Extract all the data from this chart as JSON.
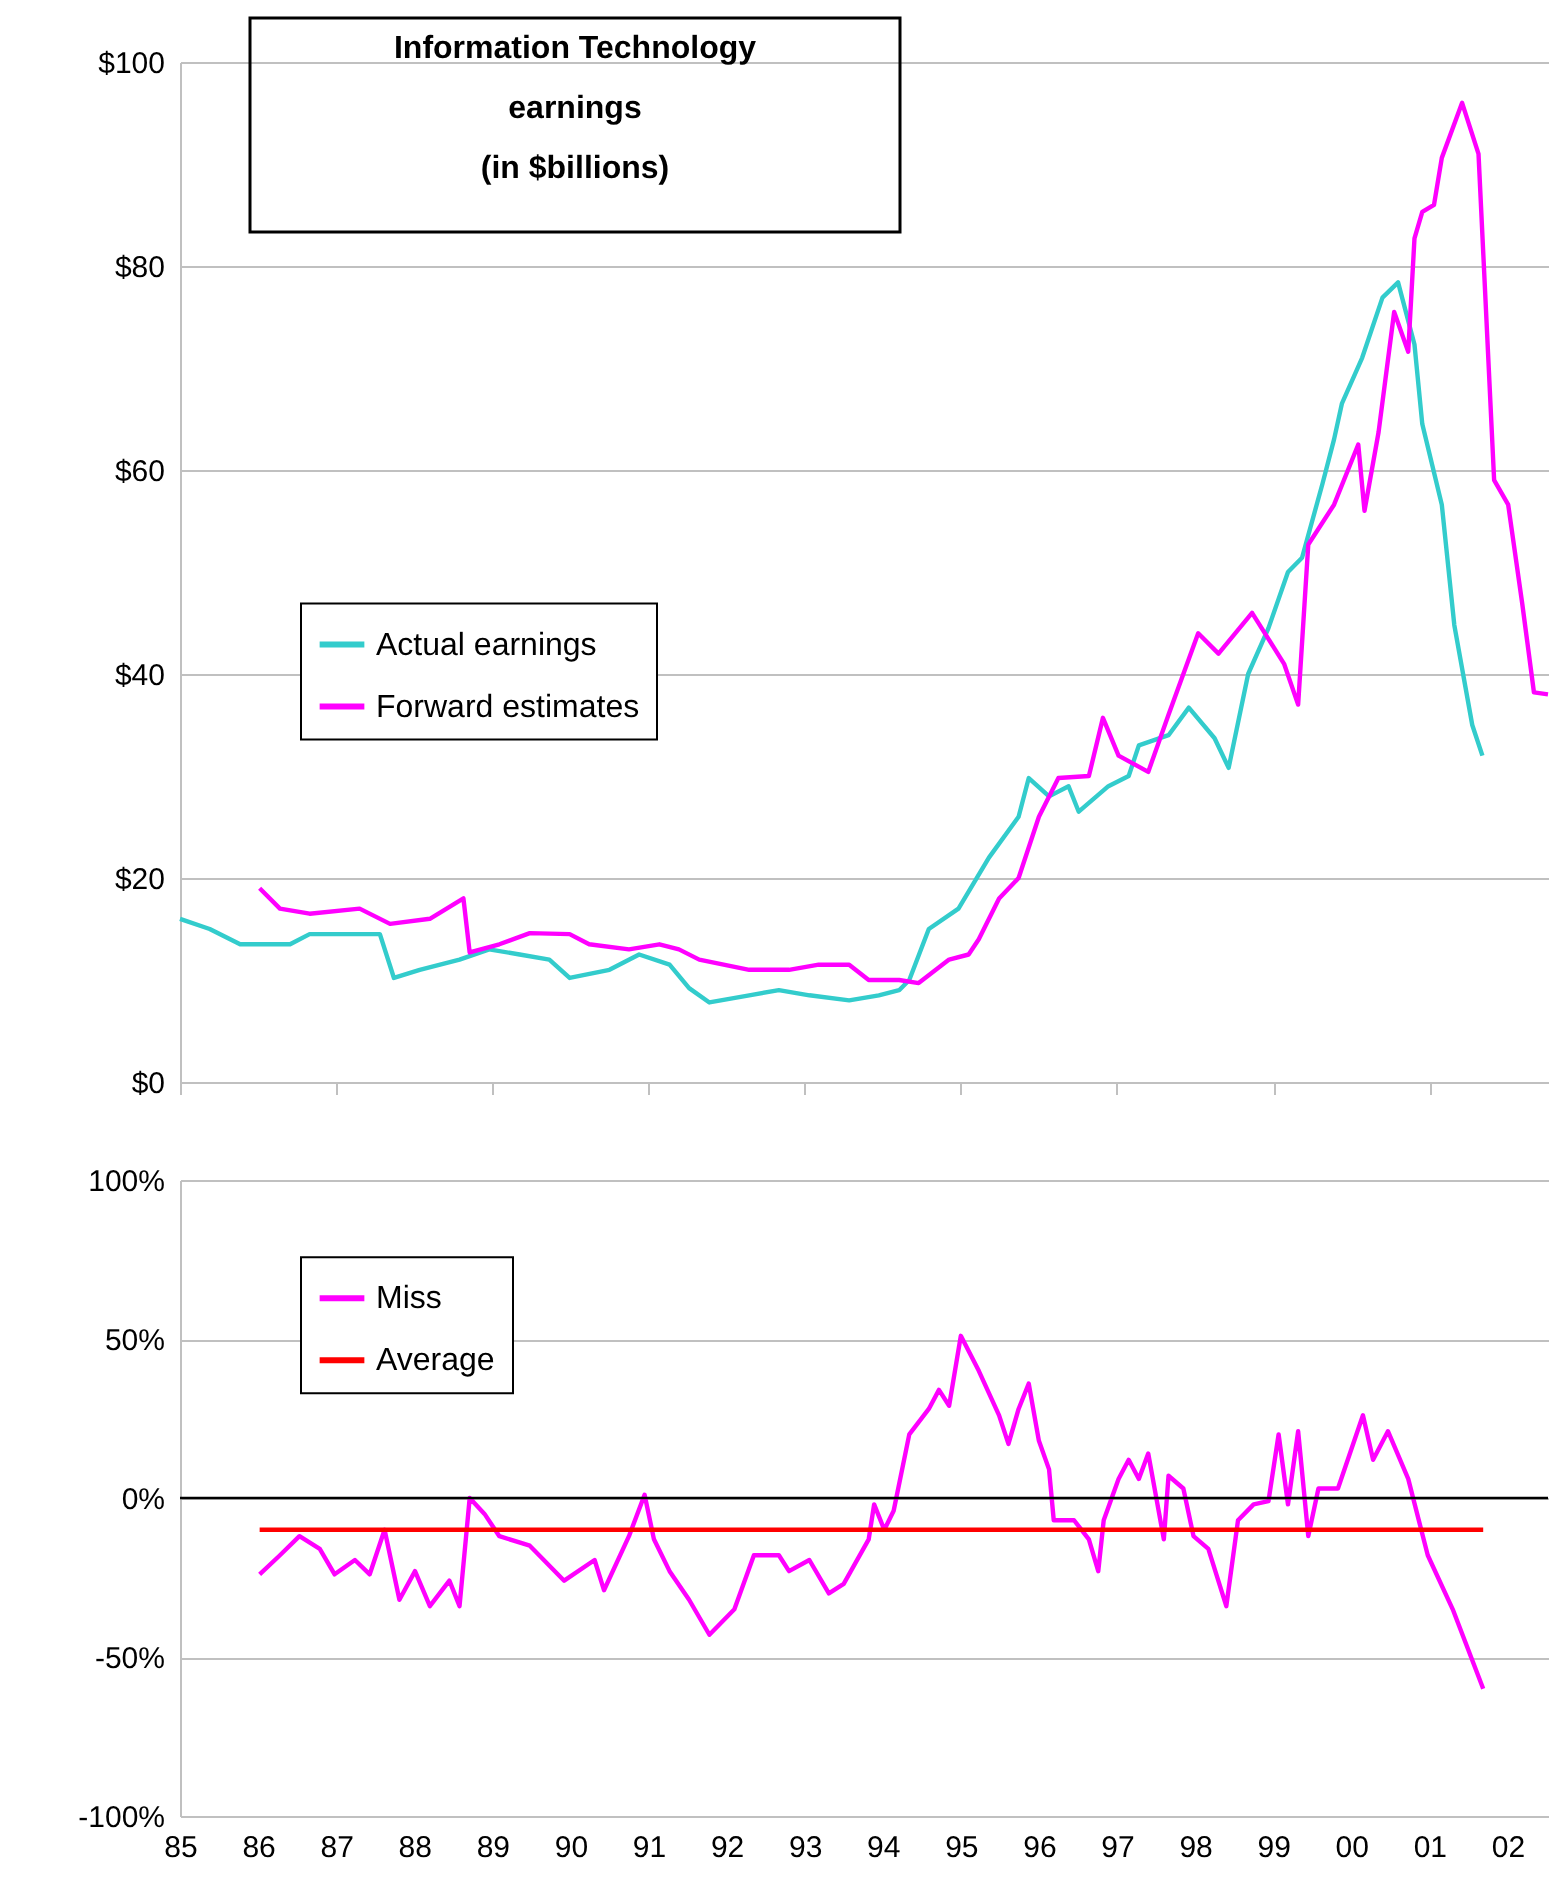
{
  "chart_data": [
    {
      "type": "line",
      "title": "Information Technology\nearnings\n(in $billions)",
      "xlim": [
        1985,
        2002.52
      ],
      "xticks": [
        {
          "value": 1985,
          "label": null
        },
        {
          "value": 1987,
          "label": null
        },
        {
          "value": 1989,
          "label": null
        },
        {
          "value": 1991,
          "label": null
        },
        {
          "value": 1993,
          "label": null
        },
        {
          "value": 1995,
          "label": null
        },
        {
          "value": 1997,
          "label": null
        },
        {
          "value": 1999,
          "label": null
        },
        {
          "value": 2001,
          "label": null
        }
      ],
      "ylim": [
        0,
        100
      ],
      "yticks": [
        {
          "value": 0,
          "label": "$0"
        },
        {
          "value": 20,
          "label": "$20"
        },
        {
          "value": 40,
          "label": "$40"
        },
        {
          "value": 60,
          "label": "$60"
        },
        {
          "value": 80,
          "label": "$80"
        },
        {
          "value": 100,
          "label": "$100"
        }
      ],
      "tick_labels": "y",
      "grid": "y",
      "legend": "left",
      "series": [
        {
          "name": "Actual earnings",
          "color": "#33cccc",
          "x": [
            1985.0,
            1985.38,
            1985.77,
            1986.41,
            1986.66,
            1987.56,
            1987.74,
            1988.07,
            1988.58,
            1988.96,
            1989.35,
            1989.73,
            1989.99,
            1990.5,
            1990.88,
            1991.27,
            1991.52,
            1991.78,
            1992.29,
            1992.67,
            1993.06,
            1993.57,
            1993.95,
            1994.21,
            1994.34,
            1994.59,
            1994.97,
            1995.36,
            1995.74,
            1995.87,
            1996.13,
            1996.38,
            1996.51,
            1996.89,
            1997.15,
            1997.28,
            1997.66,
            1997.92,
            1998.25,
            1998.43,
            1998.68,
            1998.94,
            1999.19,
            1999.37,
            1999.63,
            1999.78,
            1999.88,
            2000.14,
            2000.4,
            2000.6,
            2000.81,
            2000.91,
            2001.16,
            2001.32,
            2001.55,
            2001.68
          ],
          "values": [
            16,
            15,
            13.5,
            13.5,
            14.5,
            14.5,
            10.2,
            11,
            12,
            13,
            12.5,
            12,
            10.2,
            11,
            12.5,
            11.5,
            9.2,
            7.8,
            8.5,
            9,
            8.5,
            8,
            8.5,
            9,
            10,
            15,
            17,
            22,
            26,
            29.8,
            28,
            29,
            26.5,
            29,
            30,
            33,
            34,
            36.7,
            33.7,
            30.8,
            40,
            44.5,
            50,
            51.4,
            58.6,
            63,
            66.5,
            71,
            76.9,
            78.4,
            72.3,
            64.5,
            56.6,
            44.8,
            35,
            32
          ]
        },
        {
          "name": "Forward estimates",
          "color": "#ff00ff",
          "x": [
            1986.02,
            1986.28,
            1986.66,
            1987.3,
            1987.69,
            1988.2,
            1988.63,
            1988.71,
            1989.09,
            1989.48,
            1989.99,
            1990.24,
            1990.75,
            1991.14,
            1991.39,
            1991.65,
            1992.29,
            1992.8,
            1993.18,
            1993.57,
            1993.82,
            1994.21,
            1994.46,
            1994.85,
            1995.1,
            1995.23,
            1995.49,
            1995.74,
            1996.0,
            1996.25,
            1996.64,
            1996.82,
            1997.02,
            1997.4,
            1997.66,
            1998.04,
            1998.3,
            1998.73,
            1999.14,
            1999.32,
            1999.45,
            1999.78,
            2000.09,
            2000.17,
            2000.35,
            2000.55,
            2000.73,
            2000.81,
            2000.91,
            2001.06,
            2001.16,
            2001.42,
            2001.63,
            2001.83,
            2002.01,
            2002.19,
            2002.34,
            2002.52
          ],
          "values": [
            19,
            17,
            16.5,
            17,
            15.5,
            16,
            18,
            12.7,
            13.5,
            14.6,
            14.5,
            13.5,
            13,
            13.5,
            13,
            12,
            11,
            11,
            11.5,
            11.5,
            10,
            10,
            9.7,
            12,
            12.5,
            14,
            18,
            20,
            26,
            29.8,
            30,
            35.7,
            32,
            30.4,
            36,
            44,
            42,
            46,
            41,
            37,
            52.7,
            56.6,
            62.5,
            56,
            63.7,
            75.5,
            71.6,
            82.7,
            85.3,
            86,
            90.6,
            96,
            91,
            59,
            56.6,
            46.9,
            38.2,
            38
          ]
        }
      ]
    },
    {
      "type": "line",
      "xlim": [
        1985,
        2002.52
      ],
      "xticks": [
        {
          "value": 1985,
          "label": "85"
        },
        {
          "value": 1986,
          "label": "86"
        },
        {
          "value": 1987,
          "label": "87"
        },
        {
          "value": 1988,
          "label": "88"
        },
        {
          "value": 1989,
          "label": "89"
        },
        {
          "value": 1990,
          "label": "90"
        },
        {
          "value": 1991,
          "label": "91"
        },
        {
          "value": 1992,
          "label": "92"
        },
        {
          "value": 1993,
          "label": "93"
        },
        {
          "value": 1994,
          "label": "94"
        },
        {
          "value": 1995,
          "label": "95"
        },
        {
          "value": 1996,
          "label": "96"
        },
        {
          "value": 1997,
          "label": "97"
        },
        {
          "value": 1998,
          "label": "98"
        },
        {
          "value": 1999,
          "label": "99"
        },
        {
          "value": 2000,
          "label": "00"
        },
        {
          "value": 2001,
          "label": "01"
        },
        {
          "value": 2002,
          "label": "02"
        }
      ],
      "ylim": [
        -100,
        100
      ],
      "yticks": [
        {
          "value": -100,
          "label": "-100%"
        },
        {
          "value": -50,
          "label": "-50%"
        },
        {
          "value": 0,
          "label": "0%"
        },
        {
          "value": 50,
          "label": "50%"
        },
        {
          "value": 100,
          "label": "100%"
        }
      ],
      "grid": "y",
      "legend": "top left",
      "ref_lines": [
        {
          "axis": "y",
          "value": 0,
          "color": "#000000"
        }
      ],
      "series": [
        {
          "name": "Miss",
          "color": "#ff00ff",
          "x": [
            1986.02,
            1986.28,
            1986.53,
            1986.79,
            1986.98,
            1987.24,
            1987.43,
            1987.62,
            1987.81,
            1988.01,
            1988.2,
            1988.45,
            1988.58,
            1988.71,
            1988.9,
            1989.09,
            1989.48,
            1989.92,
            1990.31,
            1990.43,
            1990.75,
            1990.95,
            1991.07,
            1991.27,
            1991.52,
            1991.78,
            1992.1,
            1992.35,
            1992.67,
            1992.8,
            1993.06,
            1993.31,
            1993.5,
            1993.82,
            1993.89,
            1994.02,
            1994.14,
            1994.34,
            1994.59,
            1994.72,
            1994.85,
            1995.0,
            1995.23,
            1995.49,
            1995.61,
            1995.74,
            1995.87,
            1996.0,
            1996.13,
            1996.19,
            1996.45,
            1996.64,
            1996.76,
            1996.83,
            1997.02,
            1997.15,
            1997.28,
            1997.4,
            1997.6,
            1997.66,
            1997.85,
            1997.98,
            1998.17,
            1998.4,
            1998.55,
            1998.75,
            1998.94,
            1999.07,
            1999.19,
            1999.32,
            1999.45,
            1999.58,
            1999.83,
            2000.15,
            2000.28,
            2000.47,
            2000.73,
            2000.98,
            2001.3,
            2001.69
          ],
          "values": [
            -24,
            -18,
            -12,
            -16,
            -24,
            -19.5,
            -24,
            -10,
            -32,
            -23,
            -34,
            -26,
            -34,
            0,
            -5,
            -12,
            -15,
            -26,
            -19.5,
            -29,
            -12,
            1,
            -13,
            -23,
            -32,
            -43,
            -35,
            -18,
            -18,
            -23,
            -19.5,
            -30,
            -27,
            -13,
            -2,
            -10,
            -4,
            20,
            28,
            34,
            29,
            51,
            40,
            26,
            17,
            28,
            36,
            18,
            9,
            -7,
            -7,
            -13,
            -23,
            -7,
            6,
            12,
            6,
            14,
            -13,
            7,
            3,
            -12,
            -16,
            -34,
            -7,
            -2,
            -1,
            20,
            -2,
            21,
            -12,
            3,
            3,
            26,
            12,
            21,
            6,
            -18,
            -35,
            -60
          ]
        },
        {
          "name": "Average",
          "color": "#ff0000",
          "x": [
            1986.02,
            2001.69
          ],
          "values": [
            -10,
            -10
          ]
        }
      ]
    }
  ]
}
